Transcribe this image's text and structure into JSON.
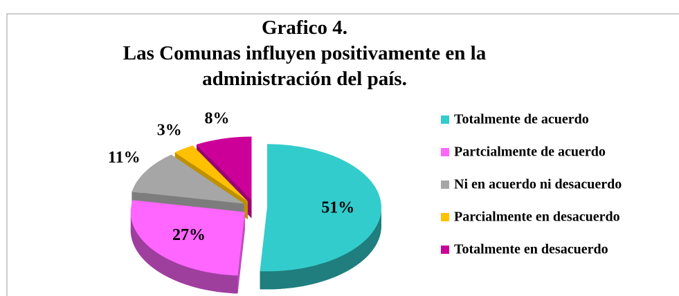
{
  "chart_data": {
    "type": "pie",
    "title": "Grafico 4.",
    "subtitle": "Las Comunas influyen positivamente en la administración del país.",
    "categories": [
      "Totalmente de acuerdo",
      "Partcialmente de acuerdo",
      "Ni en acuerdo ni desacuerdo",
      "Parcialmente en desacuerdo",
      "Totalmente en desacuerdo"
    ],
    "values": [
      51,
      27,
      11,
      3,
      8
    ],
    "value_labels": [
      "51%",
      "27%",
      "11%",
      "3%",
      "8%"
    ],
    "colors": [
      "#33CCCC",
      "#FF66FF",
      "#A6A6A6",
      "#FFC000",
      "#CC0099"
    ],
    "legend": "right"
  }
}
